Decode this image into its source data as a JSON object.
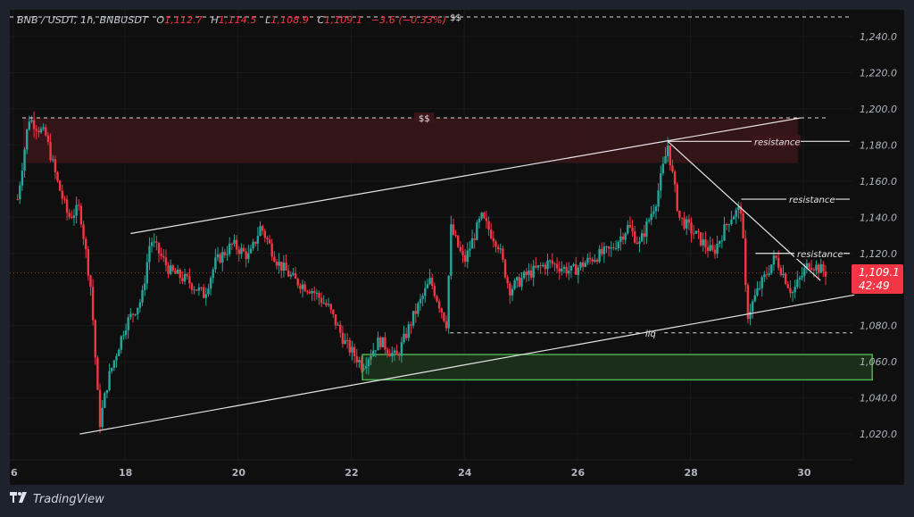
{
  "legend": {
    "symbol": "BNB / USDT, 1h, BNBUSDT",
    "open_label": "O",
    "open": "1,112.7",
    "high_label": "H",
    "high": "1,114.5",
    "low_label": "L",
    "low": "1,108.9",
    "close_label": "C",
    "close": "1,109.1",
    "change": "−3.6 (−0.33%)"
  },
  "price_tag": {
    "price": "1,109.1",
    "countdown": "42:49",
    "color": "#f23645"
  },
  "footer": {
    "logo_icon": "tradingview-logo-icon",
    "brand": "TradingView"
  },
  "colors": {
    "up": "#26a69a",
    "down": "#f23645",
    "supply_zone": "#3a1519",
    "demand_zone_fill": "#1b2e1a",
    "demand_zone_border": "#4caf50",
    "lines": "#e6e6e6"
  },
  "chart_data": {
    "type": "candlestick",
    "title": "BNB / USDT, 1h, BNBUSDT",
    "xlabel": "",
    "ylabel": "",
    "x_ticks": [
      "6",
      "18",
      "20",
      "22",
      "24",
      "26",
      "28",
      "30"
    ],
    "y_ticks": [
      "1,240.0",
      "1,220.0",
      "1,200.0",
      "1,180.0",
      "1,160.0",
      "1,140.0",
      "1,120.0",
      "1,080.0",
      "1,060.0",
      "1,040.0",
      "1,020.0"
    ],
    "ylim": [
      1010,
      1252
    ],
    "grid": true,
    "last_price": 1109.1,
    "ohlc_last": {
      "open": 1112.7,
      "high": 1114.5,
      "low": 1108.9,
      "close": 1109.1,
      "change": -3.6,
      "change_pct": -0.33
    },
    "approx_close_path": [
      {
        "day": 16.1,
        "price": 1150
      },
      {
        "day": 16.3,
        "price": 1195
      },
      {
        "day": 16.6,
        "price": 1185
      },
      {
        "day": 16.8,
        "price": 1160
      },
      {
        "day": 17.0,
        "price": 1140
      },
      {
        "day": 17.2,
        "price": 1145
      },
      {
        "day": 17.4,
        "price": 1100
      },
      {
        "day": 17.55,
        "price": 1025
      },
      {
        "day": 17.7,
        "price": 1050
      },
      {
        "day": 18.0,
        "price": 1080
      },
      {
        "day": 18.3,
        "price": 1095
      },
      {
        "day": 18.45,
        "price": 1128
      },
      {
        "day": 18.8,
        "price": 1110
      },
      {
        "day": 19.1,
        "price": 1105
      },
      {
        "day": 19.4,
        "price": 1097
      },
      {
        "day": 19.6,
        "price": 1115
      },
      {
        "day": 19.9,
        "price": 1125
      },
      {
        "day": 20.2,
        "price": 1118
      },
      {
        "day": 20.4,
        "price": 1135
      },
      {
        "day": 20.7,
        "price": 1115
      },
      {
        "day": 21.0,
        "price": 1105
      },
      {
        "day": 21.3,
        "price": 1100
      },
      {
        "day": 21.6,
        "price": 1090
      },
      {
        "day": 21.9,
        "price": 1070
      },
      {
        "day": 22.2,
        "price": 1058
      },
      {
        "day": 22.5,
        "price": 1072
      },
      {
        "day": 22.8,
        "price": 1062
      },
      {
        "day": 23.1,
        "price": 1085
      },
      {
        "day": 23.4,
        "price": 1105
      },
      {
        "day": 23.7,
        "price": 1080
      },
      {
        "day": 23.75,
        "price": 1135
      },
      {
        "day": 24.0,
        "price": 1115
      },
      {
        "day": 24.3,
        "price": 1140
      },
      {
        "day": 24.6,
        "price": 1125
      },
      {
        "day": 24.8,
        "price": 1100
      },
      {
        "day": 25.1,
        "price": 1108
      },
      {
        "day": 25.5,
        "price": 1115
      },
      {
        "day": 25.9,
        "price": 1110
      },
      {
        "day": 26.3,
        "price": 1118
      },
      {
        "day": 26.6,
        "price": 1122
      },
      {
        "day": 26.9,
        "price": 1135
      },
      {
        "day": 27.1,
        "price": 1125
      },
      {
        "day": 27.4,
        "price": 1150
      },
      {
        "day": 27.6,
        "price": 1180
      },
      {
        "day": 27.8,
        "price": 1140
      },
      {
        "day": 28.1,
        "price": 1130
      },
      {
        "day": 28.4,
        "price": 1120
      },
      {
        "day": 28.7,
        "price": 1140
      },
      {
        "day": 28.9,
        "price": 1145
      },
      {
        "day": 29.0,
        "price": 1085
      },
      {
        "day": 29.2,
        "price": 1100
      },
      {
        "day": 29.5,
        "price": 1118
      },
      {
        "day": 29.8,
        "price": 1098
      },
      {
        "day": 30.1,
        "price": 1115
      },
      {
        "day": 30.4,
        "price": 1109.1
      }
    ],
    "annotations": [
      {
        "type": "hline_dashed",
        "label": "$$",
        "price": 1250
      },
      {
        "type": "hline_dashed",
        "label": "$$",
        "price": 1195
      },
      {
        "type": "zone",
        "label": "supply",
        "from_price": 1170,
        "to_price": 1195,
        "from_day": 16.2,
        "to_day": 29.9
      },
      {
        "type": "zone",
        "label": "demand",
        "from_price": 1050,
        "to_price": 1064,
        "from_day": 22.2,
        "to_day": 30.9
      },
      {
        "type": "hline_dashed",
        "label": "liq",
        "price": 1076
      },
      {
        "type": "segment",
        "label": "resistance",
        "price": 1182
      },
      {
        "type": "segment",
        "label": "resistance",
        "price": 1150
      },
      {
        "type": "segment",
        "label": "resistance",
        "price": 1120
      },
      {
        "type": "trendline",
        "label": "channel-upper",
        "from": [
          18.1,
          1131
        ],
        "to": [
          29.95,
          1195
        ]
      },
      {
        "type": "trendline",
        "label": "channel-lower",
        "from": [
          17.2,
          1020
        ],
        "to": [
          30.9,
          1097
        ]
      },
      {
        "type": "trendline",
        "label": "descending-resistance",
        "from": [
          27.6,
          1182
        ],
        "to": [
          30.3,
          1105
        ]
      }
    ]
  }
}
